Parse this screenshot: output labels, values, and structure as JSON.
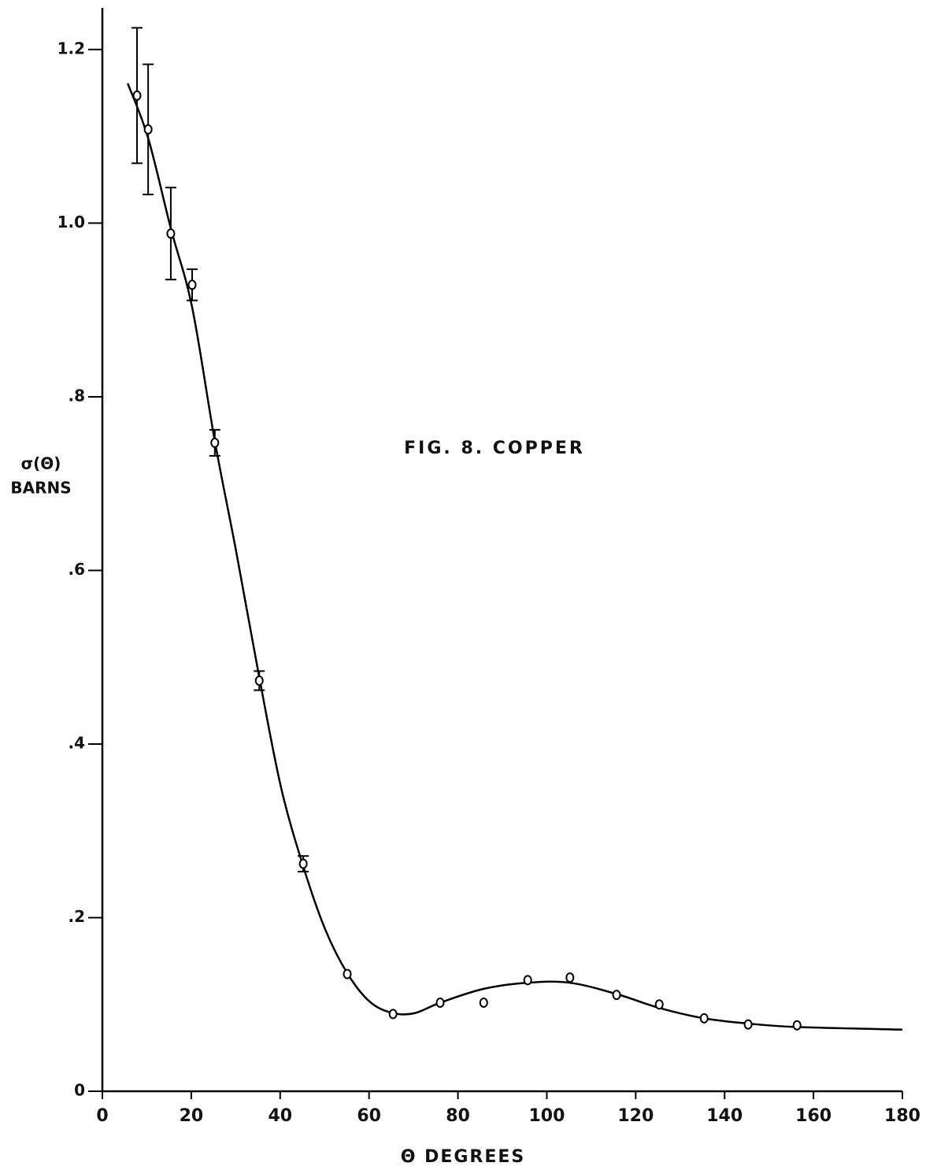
{
  "chart_data": {
    "type": "scatter",
    "title": "FIG. 8.  COPPER",
    "xlabel": "Θ  DEGREES",
    "ylabel": [
      "σ(Θ)",
      "BARNS"
    ],
    "xlim": [
      0,
      180
    ],
    "ylim": [
      0,
      1.248
    ],
    "xticks": [
      0,
      20,
      40,
      60,
      80,
      100,
      120,
      140,
      160,
      180
    ],
    "yticks": [
      0,
      {
        "value": 0.2,
        "label": ".2"
      },
      {
        "value": 0.4,
        "label": ".4"
      },
      {
        "value": 0.6,
        "label": ".6"
      },
      {
        "value": 0.8,
        "label": ".8"
      },
      {
        "value": 1.0,
        "label": "1.0"
      },
      1.2
    ],
    "color": "#000000",
    "series": [
      {
        "x": [
          7.8,
          10.3,
          15.4,
          20.2,
          25.3,
          35.3,
          45.2,
          55.1,
          65.4,
          76.0,
          85.8,
          95.7,
          105.2,
          115.7,
          125.3,
          135.4,
          145.3,
          156.3
        ],
        "values": [
          1.147,
          1.108,
          0.988,
          0.929,
          0.747,
          0.473,
          0.262,
          0.135,
          0.089,
          0.102,
          0.102,
          0.128,
          0.131,
          0.111,
          0.1,
          0.084,
          0.077,
          0.076
        ],
        "errors": [
          0.078,
          0.075,
          0.053,
          0.018,
          0.015,
          0.011,
          0.009,
          null,
          null,
          null,
          null,
          null,
          null,
          null,
          null,
          null,
          null,
          null
        ]
      }
    ],
    "curve": {
      "x": [
        5.7,
        10.3,
        15.4,
        20.2,
        25.3,
        30.1,
        35.3,
        40.2,
        45.2,
        50.1,
        55.1,
        60.2,
        65.4,
        70.3,
        76.0,
        85.8,
        95.7,
        105.2,
        115.7,
        125.3,
        135.4,
        145.3,
        156.3,
        180
      ],
      "values": [
        1.161,
        1.098,
        0.994,
        0.903,
        0.749,
        0.622,
        0.477,
        0.35,
        0.259,
        0.187,
        0.136,
        0.103,
        0.09,
        0.09,
        0.102,
        0.118,
        0.125,
        0.125,
        0.112,
        0.096,
        0.084,
        0.078,
        0.074,
        0.071
      ]
    }
  }
}
